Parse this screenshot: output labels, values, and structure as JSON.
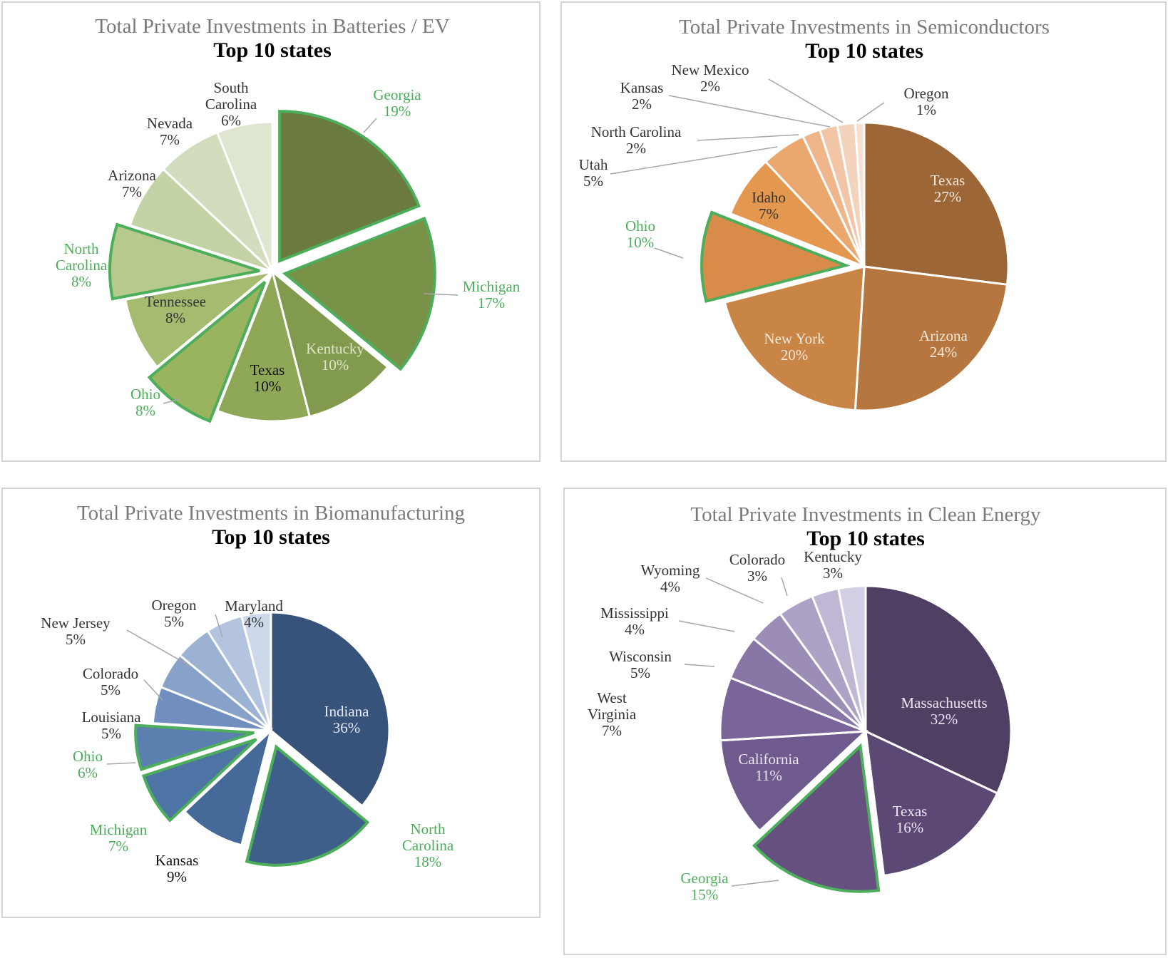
{
  "chart_data": [
    {
      "type": "pie",
      "title": "Total Private Investments in Batteries / EV",
      "subtitle": "Top 10 states",
      "highlight_color": "#4cae5b",
      "slices": [
        {
          "label": "Georgia",
          "value": 19,
          "pct": "19%",
          "color": "#6b7b40",
          "exploded": true,
          "highlight": true,
          "label_color": "#4cae5b"
        },
        {
          "label": "Michigan",
          "value": 17,
          "pct": "17%",
          "color": "#7a9148",
          "exploded": true,
          "highlight": true,
          "label_color": "#4cae5b"
        },
        {
          "label": "Kentucky",
          "value": 10,
          "pct": "10%",
          "color": "#819a4e",
          "exploded": false,
          "highlight": false,
          "label_color": "#dfe6c8"
        },
        {
          "label": "Texas",
          "value": 10,
          "pct": "10%",
          "color": "#8fa857",
          "exploded": false,
          "highlight": false,
          "label_color": "#111111"
        },
        {
          "label": "Ohio",
          "value": 8,
          "pct": "8%",
          "color": "#99b35e",
          "exploded": true,
          "highlight": true,
          "label_color": "#4cae5b"
        },
        {
          "label": "Tennessee",
          "value": 8,
          "pct": "8%",
          "color": "#a4bb70",
          "exploded": false,
          "highlight": false,
          "label_color": "#333333"
        },
        {
          "label": "North Carolina",
          "value": 8,
          "pct": "8%",
          "color": "#b6c98e",
          "exploded": true,
          "highlight": true,
          "label_color": "#4cae5b"
        },
        {
          "label": "Arizona",
          "value": 7,
          "pct": "7%",
          "color": "#c4d3a5",
          "exploded": false,
          "highlight": false,
          "label_color": "#333333"
        },
        {
          "label": "Nevada",
          "value": 7,
          "pct": "7%",
          "color": "#d2ddbd",
          "exploded": false,
          "highlight": false,
          "label_color": "#333333"
        },
        {
          "label": "South Carolina",
          "value": 6,
          "pct": "6%",
          "color": "#dfe6d0",
          "exploded": false,
          "highlight": false,
          "label_color": "#333333"
        }
      ]
    },
    {
      "type": "pie",
      "title": "Total Private Investments in Semiconductors",
      "subtitle": "Top 10 states",
      "highlight_color": "#4cae5b",
      "slices": [
        {
          "label": "Texas",
          "value": 27,
          "pct": "27%",
          "color": "#9c6636",
          "exploded": false,
          "highlight": false,
          "label_color": "#f6e8da"
        },
        {
          "label": "Arizona",
          "value": 24,
          "pct": "24%",
          "color": "#b5773f",
          "exploded": false,
          "highlight": false,
          "label_color": "#f6e8da"
        },
        {
          "label": "New York",
          "value": 20,
          "pct": "20%",
          "color": "#c98546",
          "exploded": false,
          "highlight": false,
          "label_color": "#f6e8da"
        },
        {
          "label": "Ohio",
          "value": 10,
          "pct": "10%",
          "color": "#d98b4a",
          "exploded": true,
          "highlight": true,
          "label_color": "#4cae5b"
        },
        {
          "label": "Idaho",
          "value": 7,
          "pct": "7%",
          "color": "#e4984f",
          "exploded": false,
          "highlight": false,
          "label_color": "#333333"
        },
        {
          "label": "Utah",
          "value": 5,
          "pct": "5%",
          "color": "#eaa86f",
          "exploded": false,
          "highlight": false,
          "label_color": "#333333"
        },
        {
          "label": "North Carolina",
          "value": 2,
          "pct": "2%",
          "color": "#eeb68a",
          "exploded": false,
          "highlight": false,
          "label_color": "#333333"
        },
        {
          "label": "Kansas",
          "value": 2,
          "pct": "2%",
          "color": "#f1c5a6",
          "exploded": false,
          "highlight": false,
          "label_color": "#333333"
        },
        {
          "label": "New Mexico",
          "value": 2,
          "pct": "2%",
          "color": "#f4d3bd",
          "exploded": false,
          "highlight": false,
          "label_color": "#333333"
        },
        {
          "label": "Oregon",
          "value": 1,
          "pct": "1%",
          "color": "#f7e0d1",
          "exploded": false,
          "highlight": false,
          "label_color": "#333333"
        }
      ]
    },
    {
      "type": "pie",
      "title": "Total Private Investments in Biomanufacturing",
      "subtitle": "Top 10 states",
      "highlight_color": "#4cae5b",
      "slices": [
        {
          "label": "Indiana",
          "value": 36,
          "pct": "36%",
          "color": "#37537a",
          "exploded": false,
          "highlight": false,
          "label_color": "#e6ecf6"
        },
        {
          "label": "North Carolina",
          "value": 18,
          "pct": "18%",
          "color": "#3f5f8b",
          "exploded": true,
          "highlight": true,
          "label_color": "#4cae5b"
        },
        {
          "label": "Kansas",
          "value": 9,
          "pct": "9%",
          "color": "#456998",
          "exploded": false,
          "highlight": false,
          "label_color": "#111111"
        },
        {
          "label": "Michigan",
          "value": 7,
          "pct": "7%",
          "color": "#4e73a5",
          "exploded": true,
          "highlight": true,
          "label_color": "#4cae5b"
        },
        {
          "label": "Ohio",
          "value": 6,
          "pct": "6%",
          "color": "#5b80b0",
          "exploded": true,
          "highlight": true,
          "label_color": "#4cae5b"
        },
        {
          "label": "Louisiana",
          "value": 5,
          "pct": "5%",
          "color": "#708fbe",
          "exploded": false,
          "highlight": false,
          "label_color": "#333333"
        },
        {
          "label": "Colorado",
          "value": 5,
          "pct": "5%",
          "color": "#87a1c9",
          "exploded": false,
          "highlight": false,
          "label_color": "#333333"
        },
        {
          "label": "New Jersey",
          "value": 5,
          "pct": "5%",
          "color": "#9cb2d3",
          "exploded": false,
          "highlight": false,
          "label_color": "#333333"
        },
        {
          "label": "Oregon",
          "value": 5,
          "pct": "5%",
          "color": "#b4c4de",
          "exploded": false,
          "highlight": false,
          "label_color": "#333333"
        },
        {
          "label": "Maryland",
          "value": 4,
          "pct": "4%",
          "color": "#cdd8ea",
          "exploded": false,
          "highlight": false,
          "label_color": "#333333"
        }
      ]
    },
    {
      "type": "pie",
      "title": "Total Private Investments in Clean Energy",
      "subtitle": "Top 10 states",
      "highlight_color": "#4cae5b",
      "slices": [
        {
          "label": "Massachusetts",
          "value": 32,
          "pct": "32%",
          "color": "#4f3f63",
          "exploded": false,
          "highlight": false,
          "label_color": "#ece6f2"
        },
        {
          "label": "Texas",
          "value": 16,
          "pct": "16%",
          "color": "#5c4875",
          "exploded": false,
          "highlight": false,
          "label_color": "#ece6f2"
        },
        {
          "label": "Georgia",
          "value": 15,
          "pct": "15%",
          "color": "#66507f",
          "exploded": true,
          "highlight": true,
          "label_color": "#4cae5b"
        },
        {
          "label": "California",
          "value": 11,
          "pct": "11%",
          "color": "#6f5a8e",
          "exploded": false,
          "highlight": false,
          "label_color": "#ece6f2"
        },
        {
          "label": "West Virginia",
          "value": 7,
          "pct": "7%",
          "color": "#7a659b",
          "exploded": false,
          "highlight": false,
          "label_color": "#333333"
        },
        {
          "label": "Wisconsin",
          "value": 5,
          "pct": "5%",
          "color": "#8876a7",
          "exploded": false,
          "highlight": false,
          "label_color": "#333333"
        },
        {
          "label": "Mississippi",
          "value": 4,
          "pct": "4%",
          "color": "#9c8db7",
          "exploded": false,
          "highlight": false,
          "label_color": "#333333"
        },
        {
          "label": "Wyoming",
          "value": 4,
          "pct": "4%",
          "color": "#ada2c5",
          "exploded": false,
          "highlight": false,
          "label_color": "#333333"
        },
        {
          "label": "Colorado",
          "value": 3,
          "pct": "3%",
          "color": "#bfb7d4",
          "exploded": false,
          "highlight": false,
          "label_color": "#333333"
        },
        {
          "label": "Kentucky",
          "value": 3,
          "pct": "3%",
          "color": "#d3cee3",
          "exploded": false,
          "highlight": false,
          "label_color": "#333333"
        }
      ]
    }
  ]
}
